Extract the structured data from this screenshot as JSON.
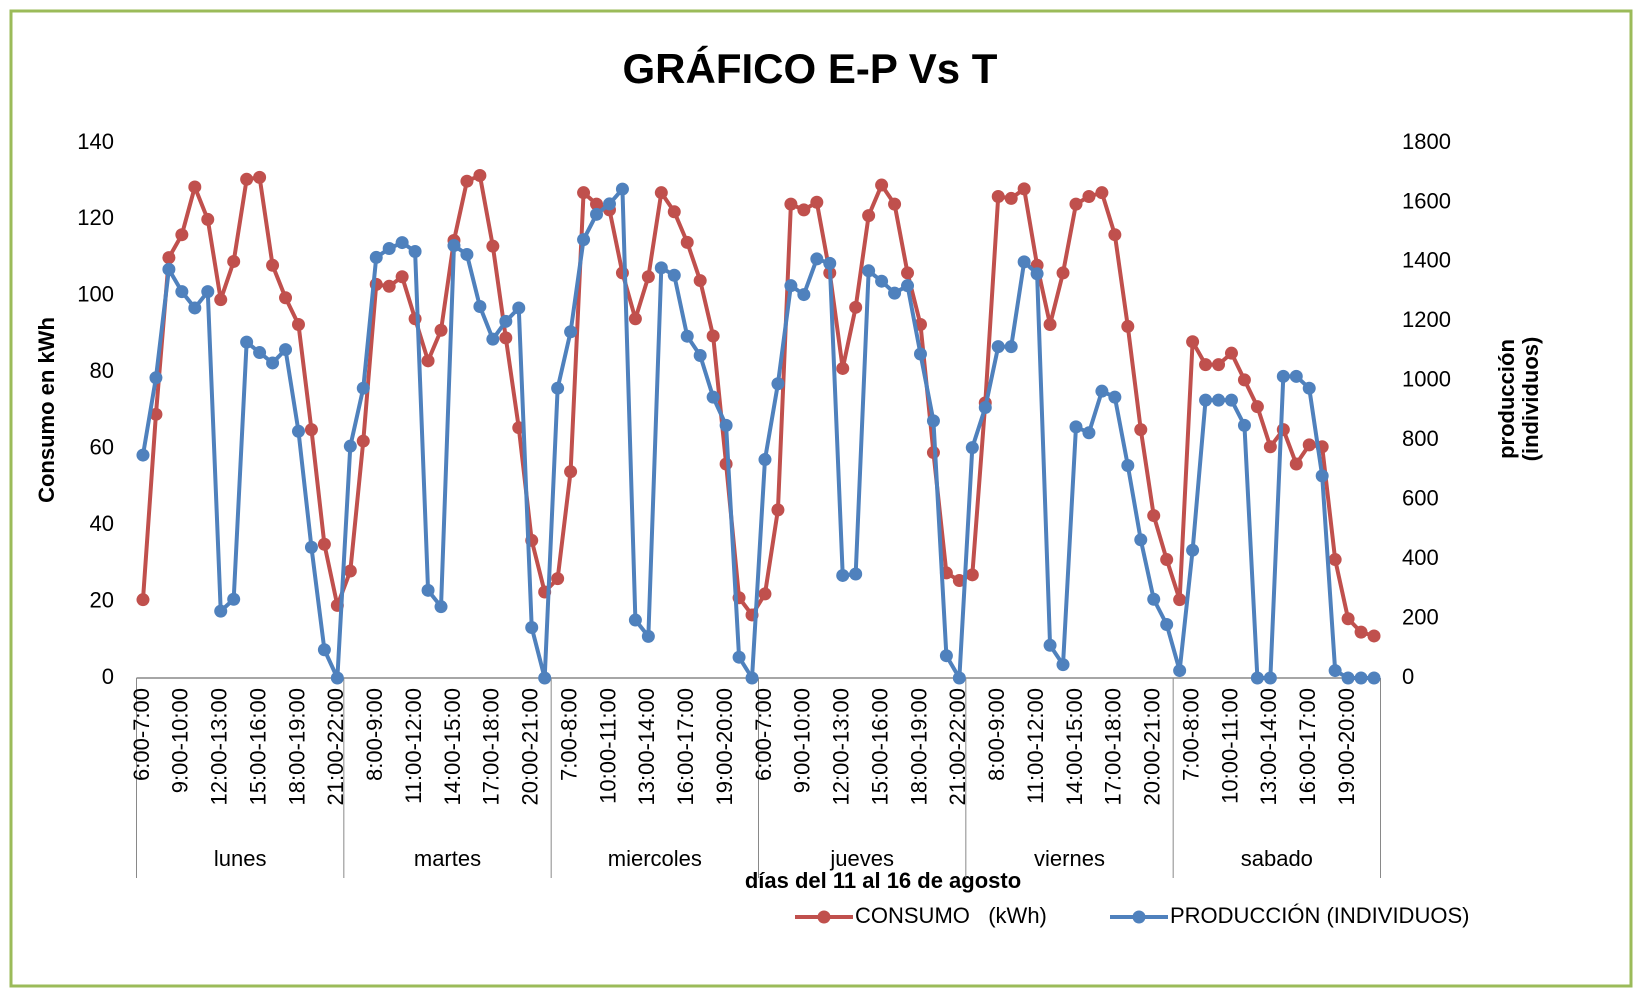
{
  "chart_data": {
    "type": "line",
    "title": "GRÁFICO E-P Vs T",
    "xlabel": "días del 11 al 16 de agosto",
    "ylabel": "Consumo en kWh",
    "y2label": [
      "producción",
      "(individuos)"
    ],
    "groups": [
      "lunes",
      "martes",
      "miercoles",
      "jueves",
      "viernes",
      "sabado"
    ],
    "categories": [
      "6:00-7:00",
      null,
      null,
      "9:00-10:00",
      null,
      null,
      "12:00-13:00",
      null,
      null,
      "15:00-16:00",
      null,
      null,
      "18:00-19:00",
      null,
      null,
      "21:00-22:00",
      null,
      null,
      "8:00-9:00",
      null,
      null,
      "11:00-12:00",
      null,
      null,
      "14:00-15:00",
      null,
      null,
      "17:00-18:00",
      null,
      null,
      "20:00-21:00",
      null,
      null,
      "7:00-8:00",
      null,
      null,
      "10:00-11:00",
      null,
      null,
      "13:00-14:00",
      null,
      null,
      "16:00-17:00",
      null,
      null,
      "19:00-20:00",
      null,
      null,
      "6:00-7:00",
      null,
      null,
      "9:00-10:00",
      null,
      null,
      "12:00-13:00",
      null,
      null,
      "15:00-16:00",
      null,
      null,
      "18:00-19:00",
      null,
      null,
      "21:00-22:00",
      null,
      null,
      "8:00-9:00",
      null,
      null,
      "11:00-12:00",
      null,
      null,
      "14:00-15:00",
      null,
      null,
      "17:00-18:00",
      null,
      null,
      "20:00-21:00",
      null,
      null,
      "7:00-8:00",
      null,
      null,
      "10:00-11:00",
      null,
      null,
      "13:00-14:00",
      null,
      null,
      "16:00-17:00",
      null,
      null,
      "19:00-20:00",
      null,
      null
    ],
    "series": [
      {
        "name": "CONSUMO   (kWh)",
        "color": "#c0504d",
        "values": [
          20.5,
          69,
          110,
          116,
          128.5,
          120,
          99,
          109,
          130.5,
          131,
          108,
          99.5,
          92.5,
          65,
          35,
          19,
          28,
          62,
          103,
          102.5,
          105,
          94,
          83,
          91,
          114.5,
          130,
          131.5,
          113,
          89,
          65.5,
          36,
          22.5,
          26,
          54,
          127,
          124,
          122.5,
          106,
          94,
          105,
          127,
          122,
          114,
          104,
          89.5,
          56,
          21,
          16.5,
          22,
          44,
          124,
          122.5,
          124.5,
          106,
          81,
          97,
          121,
          129,
          124,
          106,
          92.5,
          59,
          27.5,
          25.5,
          27,
          72,
          126,
          125.5,
          128,
          108,
          92.5,
          106,
          124,
          126,
          127,
          116,
          92,
          65,
          42.5,
          31,
          20.5,
          88,
          82,
          82,
          85,
          78,
          71,
          60.5,
          65,
          56,
          61,
          60.5,
          31,
          15.5,
          12,
          11
        ]
      },
      {
        "name": "PRODUCCIÓN (INDIVIDUOS)",
        "color": "#4f81bd",
        "axis": "y2",
        "values": [
          750,
          1010,
          1375,
          1300,
          1245,
          1300,
          225,
          265,
          1130,
          1095,
          1060,
          1105,
          830,
          440,
          95,
          0,
          780,
          975,
          1415,
          1445,
          1465,
          1435,
          295,
          240,
          1455,
          1425,
          1250,
          1140,
          1200,
          1245,
          170,
          0,
          975,
          1165,
          1475,
          1560,
          1595,
          1645,
          195,
          140,
          1380,
          1355,
          1150,
          1085,
          945,
          850,
          70,
          0,
          735,
          990,
          1320,
          1290,
          1410,
          1395,
          345,
          350,
          1370,
          1335,
          1295,
          1320,
          1090,
          865,
          75,
          0,
          775,
          910,
          1115,
          1115,
          1400,
          1360,
          110,
          45,
          845,
          825,
          965,
          945,
          715,
          465,
          265,
          180,
          25,
          430,
          935,
          935,
          935,
          850,
          0,
          0,
          1015,
          1015,
          975,
          680,
          25,
          0,
          0,
          0
        ]
      }
    ],
    "ylim": [
      0,
      140
    ],
    "yticks": [
      0,
      20,
      40,
      60,
      80,
      100,
      120,
      140
    ],
    "y2lim": [
      0,
      1800
    ],
    "y2ticks": [
      0,
      200,
      400,
      600,
      800,
      1000,
      1200,
      1400,
      1600,
      1800
    ],
    "grid": false,
    "legend": "bottom"
  }
}
